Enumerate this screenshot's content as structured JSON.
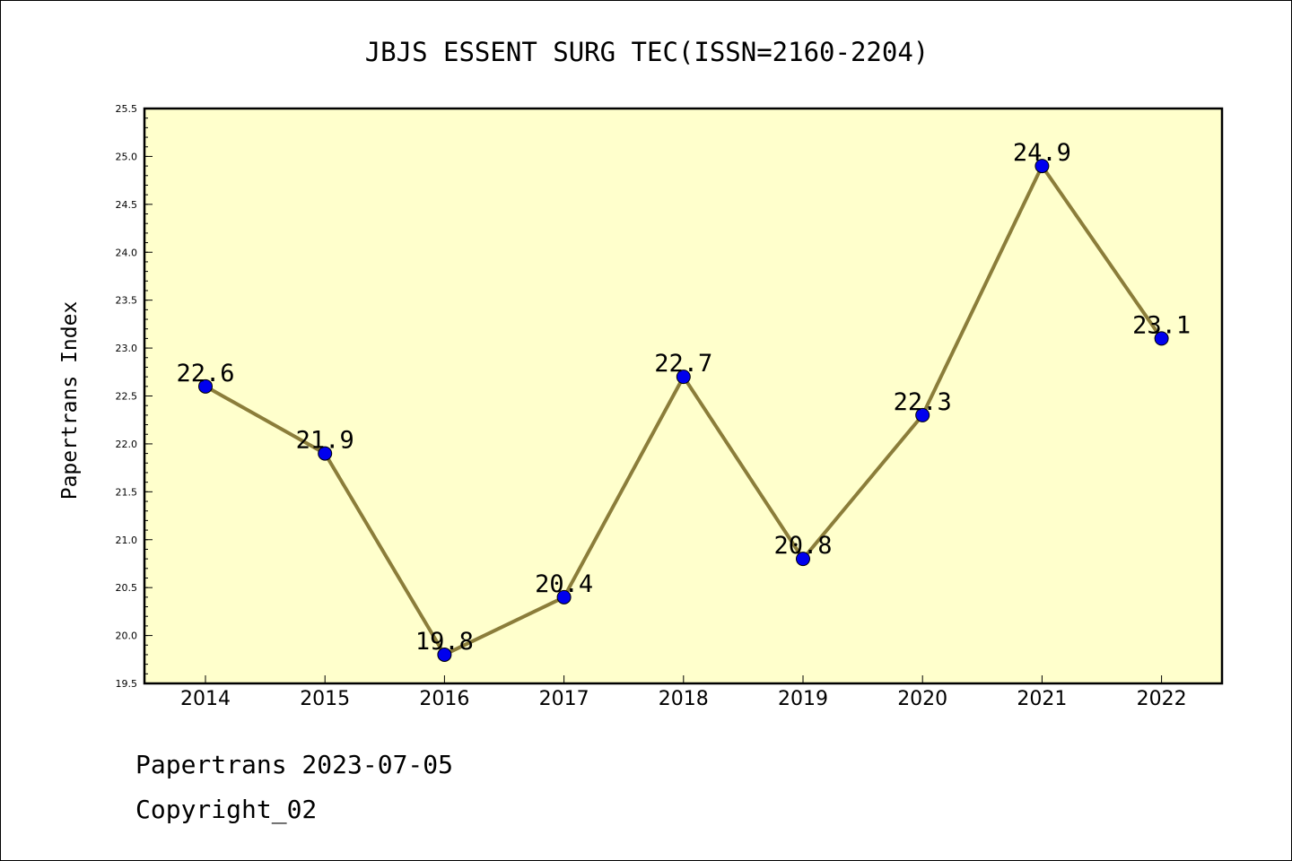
{
  "chart_data": {
    "type": "line",
    "title": "JBJS ESSENT SURG TEC(ISSN=2160-2204)",
    "xlabel": "",
    "ylabel": "Papertrans Index",
    "categories": [
      "2014",
      "2015",
      "2016",
      "2017",
      "2018",
      "2019",
      "2020",
      "2021",
      "2022"
    ],
    "values": [
      22.6,
      21.9,
      19.8,
      20.4,
      22.7,
      20.8,
      22.3,
      24.9,
      23.1
    ],
    "data_labels": [
      "22.6",
      "21.9",
      "19.8",
      "20.4",
      "22.7",
      "20.8",
      "22.3",
      "24.9",
      "23.1"
    ],
    "ylim": [
      19.5,
      25.5
    ],
    "yticks": [
      "19.5",
      "20.0",
      "20.5",
      "21.0",
      "21.5",
      "22.0",
      "22.5",
      "23.0",
      "23.5",
      "24.0",
      "24.5",
      "25.0",
      "25.5"
    ],
    "grid": false,
    "legend": "none",
    "colors": {
      "plot_background": "#ffffcc",
      "line": "#8b7d3a",
      "marker": "#0000ee"
    }
  },
  "footer": {
    "source": "Papertrans 2023-07-05",
    "copyright": "Copyright_02"
  }
}
